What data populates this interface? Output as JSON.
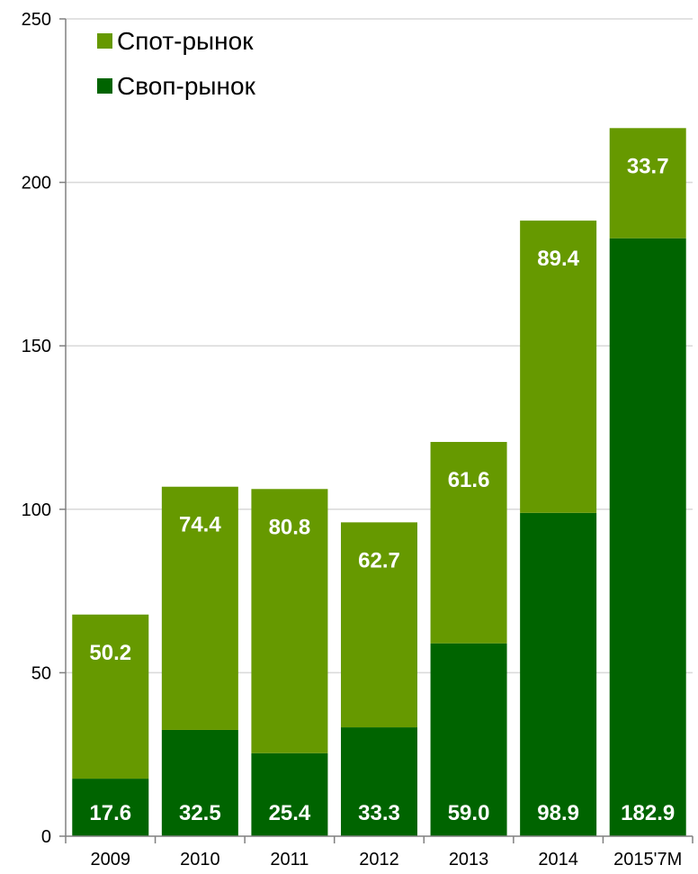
{
  "chart_data": {
    "type": "bar",
    "stacked": true,
    "categories": [
      "2009",
      "2010",
      "2011",
      "2012",
      "2013",
      "2014",
      "2015'7M"
    ],
    "series": [
      {
        "name": "Своп-рынок",
        "values": [
          17.6,
          32.5,
          25.4,
          33.3,
          59.0,
          98.9,
          182.9
        ],
        "color": "#006400"
      },
      {
        "name": "Спот-рынок",
        "values": [
          50.2,
          74.4,
          80.8,
          62.7,
          61.6,
          89.4,
          33.7
        ],
        "color": "#669900"
      }
    ],
    "legend_order": [
      "Спот-рынок",
      "Своп-рынок"
    ],
    "legend_position": "top-left",
    "yticks": [
      "0",
      "50",
      "100",
      "150",
      "200",
      "250"
    ],
    "ylim": [
      0,
      250
    ],
    "grid": true,
    "title": "",
    "xlabel": "",
    "ylabel": ""
  }
}
